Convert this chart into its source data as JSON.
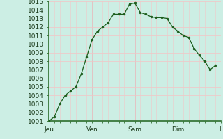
{
  "y_values": [
    1001,
    1001.5,
    1003,
    1004,
    1004.5,
    1005,
    1006.5,
    1008.5,
    1010.5,
    1011.5,
    1012,
    1012.5,
    1013.5,
    1013.5,
    1013.5,
    1014.7,
    1014.8,
    1013.7,
    1013.5,
    1013.2,
    1013.1,
    1013.1,
    1013.0,
    1012.0,
    1011.5,
    1011.0,
    1010.8,
    1009.5,
    1008.7,
    1008.0,
    1007.0,
    1007.5
  ],
  "x_ticks_positions": [
    0,
    8,
    16,
    24,
    32
  ],
  "x_tick_labels": [
    "Jeu",
    "Ven",
    "Sam",
    "Dim",
    "L"
  ],
  "y_min": 1001,
  "y_max": 1015,
  "bg_color": "#cceee4",
  "grid_minor_color": "#f0c8c8",
  "grid_major_color": "#d0b8b8",
  "line_color": "#1a5c1a",
  "marker_color": "#1a5c1a",
  "axis_line_color": "#2d6e2d",
  "tick_label_color": "#1a3a1a",
  "font_size": 6.5
}
